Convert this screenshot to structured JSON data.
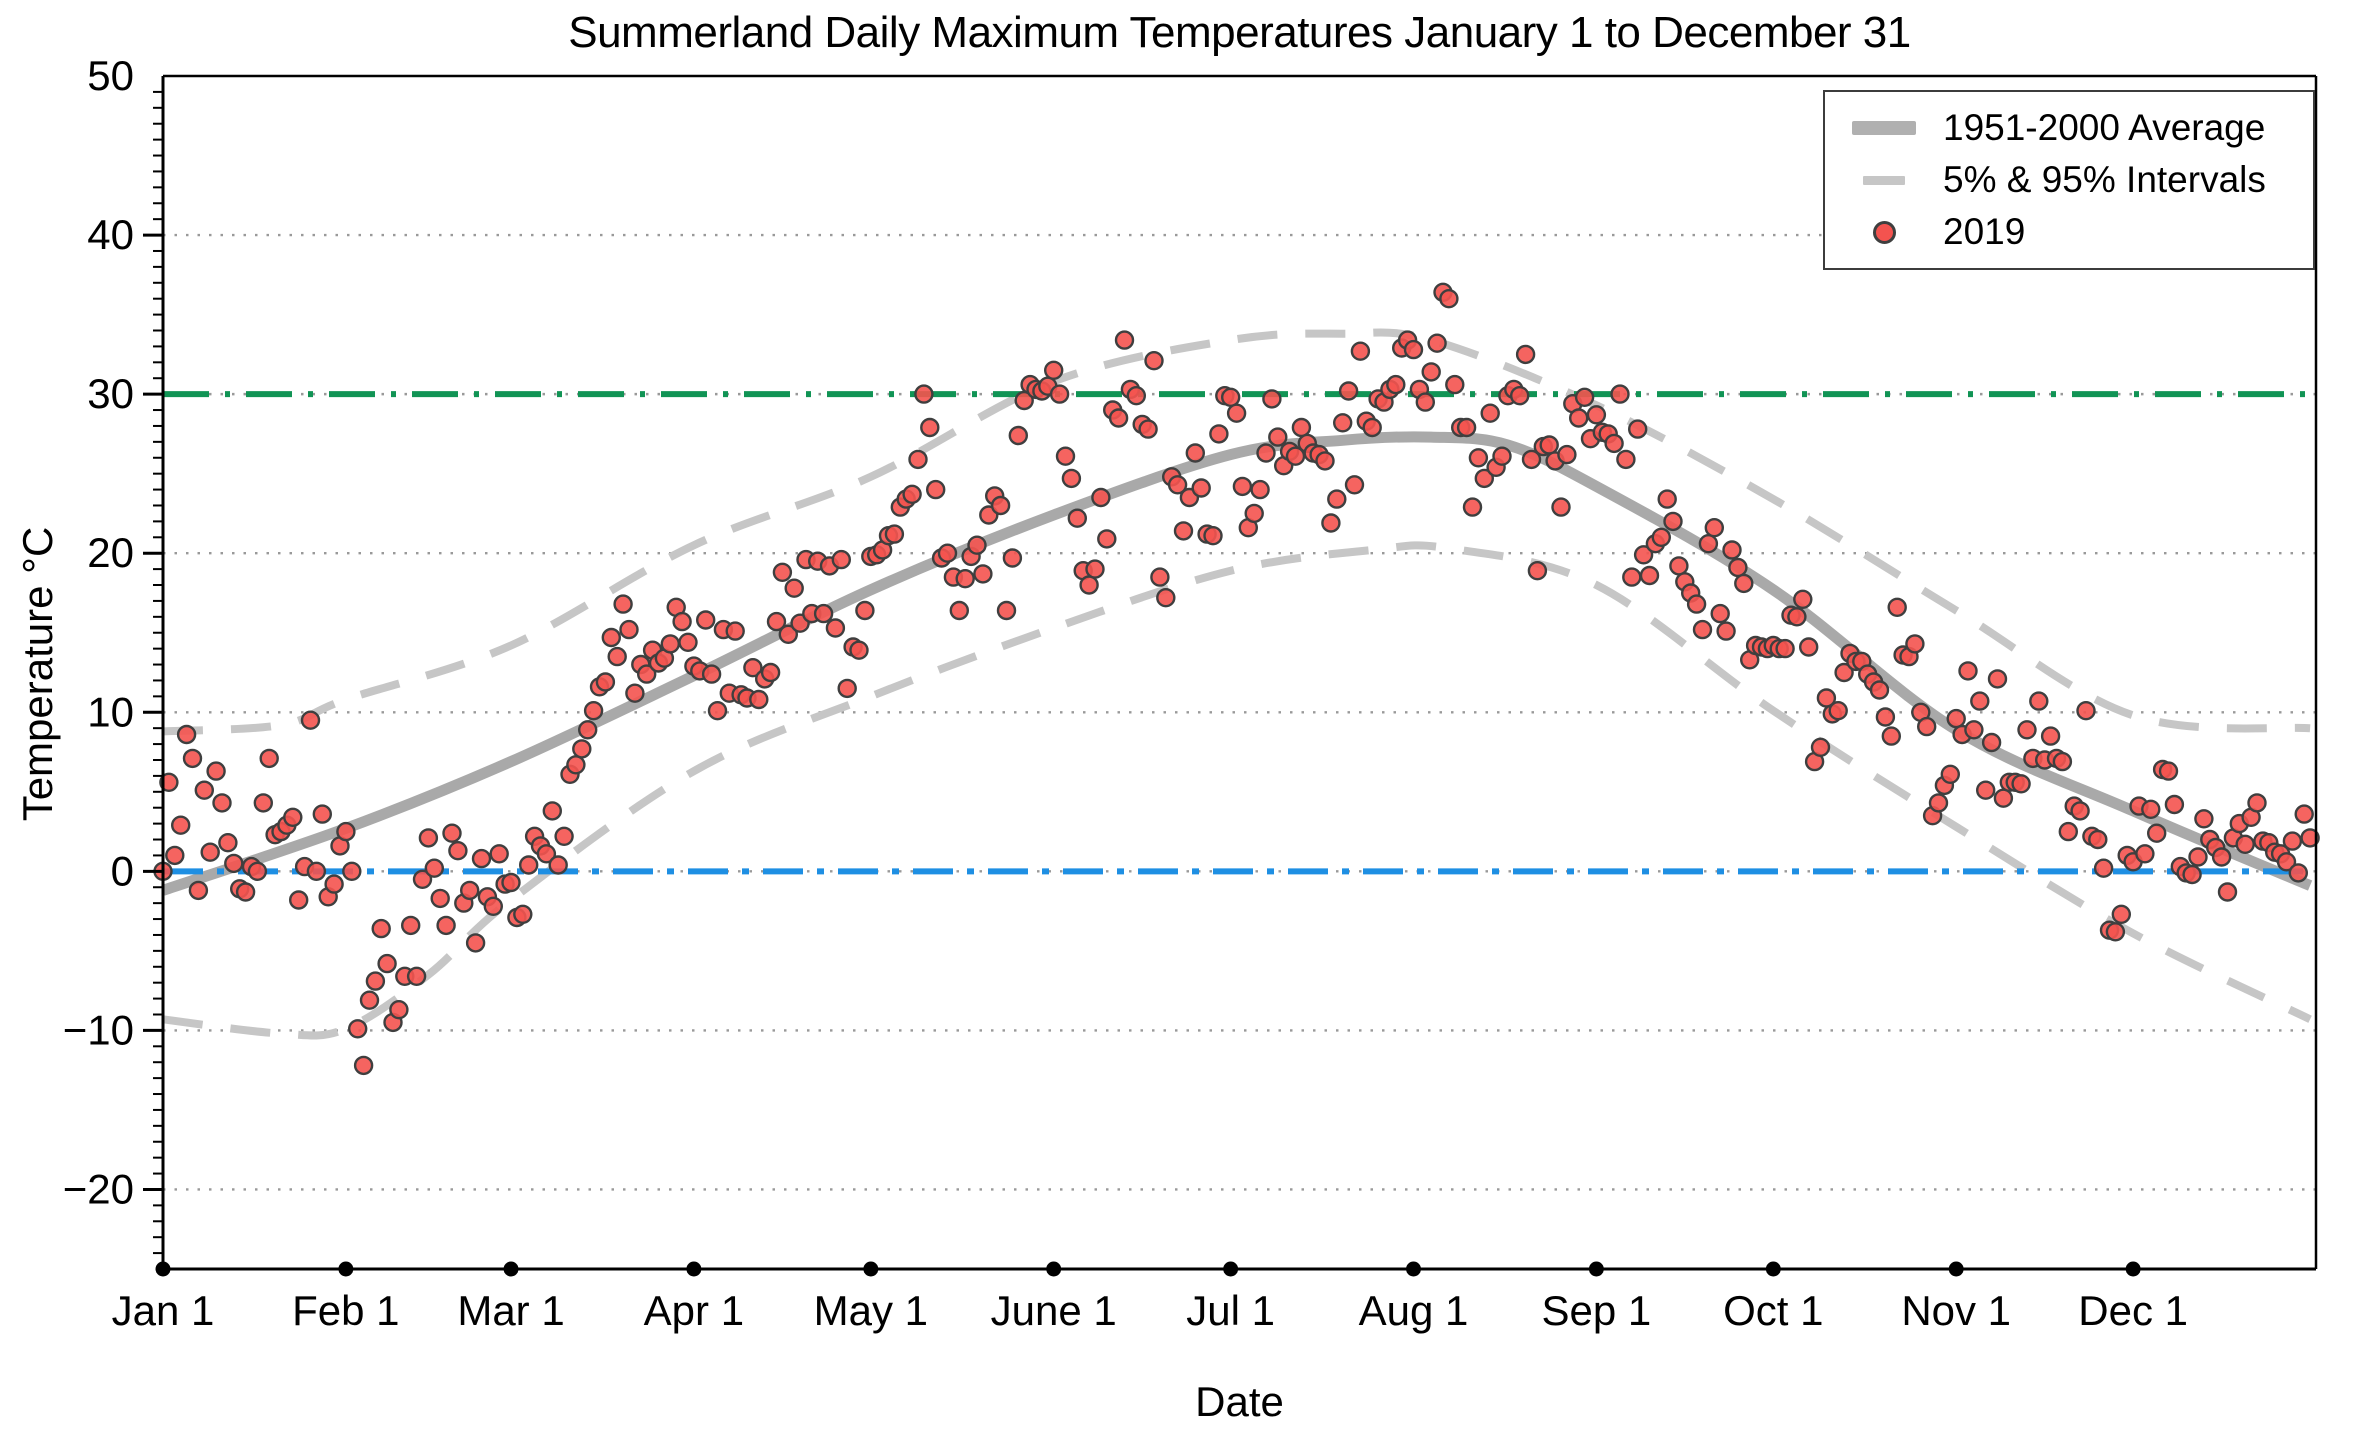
{
  "chart_data": {
    "type": "scatter",
    "title": "Summerland Daily Maximum Temperatures January 1 to December 31",
    "xlabel": "Date",
    "ylabel": "Temperature °C",
    "ylim": [
      -25,
      50
    ],
    "grid": "dotted horizontal lines at multiples of 10",
    "legend_position": "top-right",
    "yticks": [
      {
        "value": 50,
        "label": "50"
      },
      {
        "value": 40,
        "label": "40"
      },
      {
        "value": 30,
        "label": "30"
      },
      {
        "value": 20,
        "label": "20"
      },
      {
        "value": 10,
        "label": "10"
      },
      {
        "value": 0,
        "label": "0"
      },
      {
        "value": -10,
        "label": "−10"
      },
      {
        "value": -20,
        "label": "−20"
      }
    ],
    "xticks": [
      {
        "day": 0,
        "label": "Jan 1"
      },
      {
        "day": 31,
        "label": "Feb 1"
      },
      {
        "day": 59,
        "label": "Mar 1"
      },
      {
        "day": 90,
        "label": "Apr 1"
      },
      {
        "day": 120,
        "label": "May 1"
      },
      {
        "day": 151,
        "label": "June 1"
      },
      {
        "day": 181,
        "label": "Jul 1"
      },
      {
        "day": 212,
        "label": "Aug 1"
      },
      {
        "day": 243,
        "label": "Sep 1"
      },
      {
        "day": 273,
        "label": "Oct 1"
      },
      {
        "day": 304,
        "label": "Nov 1"
      },
      {
        "day": 334,
        "label": "Dec 1"
      }
    ],
    "legend": [
      {
        "label": "1951-2000 Average",
        "marker": "thick-gray-line"
      },
      {
        "label": "5% & 95% Intervals",
        "marker": "gray-dash"
      },
      {
        "label": "2019",
        "marker": "red-dot"
      }
    ],
    "reference_lines": [
      {
        "name": "30C-threshold",
        "value": 30,
        "style": "dash-dot",
        "color": "#119455"
      },
      {
        "name": "0C-freezing",
        "value": 0,
        "style": "dash-dot",
        "color": "#1e8fe3"
      }
    ],
    "series": [
      {
        "name": "1951-2000 Average",
        "style": "thick solid gray",
        "anchors_day_temp": [
          [
            0,
            -1.2
          ],
          [
            31,
            2.7
          ],
          [
            59,
            6.9
          ],
          [
            90,
            12.3
          ],
          [
            120,
            17.7
          ],
          [
            151,
            22.4
          ],
          [
            181,
            26.2
          ],
          [
            200,
            27.1
          ],
          [
            215,
            27.3
          ],
          [
            228,
            26.8
          ],
          [
            243,
            24.2
          ],
          [
            273,
            17.7
          ],
          [
            304,
            8.9
          ],
          [
            334,
            3.8
          ],
          [
            364,
            -0.9
          ]
        ]
      },
      {
        "name": "95% Interval",
        "style": "dashed gray",
        "anchors_day_temp": [
          [
            0,
            8.8
          ],
          [
            20,
            9.2
          ],
          [
            31,
            10.8
          ],
          [
            59,
            14.2
          ],
          [
            90,
            20.5
          ],
          [
            120,
            24.8
          ],
          [
            151,
            30.8
          ],
          [
            181,
            33.4
          ],
          [
            200,
            33.8
          ],
          [
            215,
            33.4
          ],
          [
            243,
            29.3
          ],
          [
            273,
            23.4
          ],
          [
            304,
            16.4
          ],
          [
            334,
            9.8
          ],
          [
            364,
            9.0
          ]
        ]
      },
      {
        "name": "5% Interval",
        "style": "dashed gray",
        "anchors_day_temp": [
          [
            0,
            -9.3
          ],
          [
            20,
            -10.2
          ],
          [
            31,
            -9.9
          ],
          [
            45,
            -6.5
          ],
          [
            59,
            -1.8
          ],
          [
            90,
            6.3
          ],
          [
            120,
            11.0
          ],
          [
            151,
            15.3
          ],
          [
            181,
            18.9
          ],
          [
            205,
            20.2
          ],
          [
            218,
            20.3
          ],
          [
            243,
            18.0
          ],
          [
            273,
            10.1
          ],
          [
            304,
            2.8
          ],
          [
            334,
            -3.9
          ],
          [
            364,
            -9.3
          ]
        ]
      }
    ],
    "daily_max_2019": {
      "Jan": [
        0.0,
        5.6,
        1.0,
        2.9,
        8.6,
        7.1,
        -1.2,
        5.1,
        1.2,
        6.3,
        4.3,
        1.8,
        0.5,
        -1.1,
        -1.3,
        0.3,
        0.0,
        4.3,
        7.1,
        2.3,
        2.5,
        2.9,
        3.4,
        -1.8,
        0.3,
        9.5,
        0.0,
        3.6,
        -1.6,
        -0.8,
        1.6
      ],
      "Feb": [
        2.5,
        0.0,
        -9.9,
        -12.2,
        -8.1,
        -6.9,
        -3.6,
        -5.8,
        -9.5,
        -8.7,
        -6.6,
        -3.4,
        -6.6,
        -0.5,
        2.1,
        0.2,
        -1.7,
        -3.4,
        2.4,
        1.3,
        -2.0,
        -1.2,
        -4.5,
        0.8,
        -1.6,
        -2.2,
        1.1,
        -0.8
      ],
      "Mar": [
        -0.7,
        -2.9,
        -2.7,
        0.4,
        2.2,
        1.6,
        1.1,
        3.8,
        0.4,
        2.2,
        6.1,
        6.7,
        7.7,
        8.9,
        10.1,
        11.6,
        11.9,
        14.7,
        13.5,
        16.8,
        15.2,
        11.2,
        13.0,
        12.4,
        13.9,
        13.1,
        13.4,
        14.3,
        16.6,
        15.7,
        14.4
      ],
      "Apr": [
        12.9,
        12.6,
        15.8,
        12.4,
        10.1,
        15.2,
        11.2,
        15.1,
        11.1,
        10.9,
        12.8,
        10.8,
        12.1,
        12.5,
        15.7,
        18.8,
        14.9,
        17.8,
        15.6,
        19.6,
        16.2,
        19.5,
        16.2,
        19.2,
        15.3,
        19.6,
        11.5,
        14.1,
        13.9,
        16.4
      ],
      "May": [
        19.8,
        19.9,
        20.2,
        21.1,
        21.2,
        22.9,
        23.4,
        23.7,
        25.9,
        30.0,
        27.9,
        24.0,
        19.7,
        20.0,
        18.5,
        16.4,
        18.4,
        19.8,
        20.5,
        18.7,
        22.4,
        23.6,
        23.0,
        16.4,
        19.7,
        27.4,
        29.6,
        30.6,
        30.3,
        30.2,
        30.5
      ],
      "Jun": [
        31.5,
        30.0,
        26.1,
        24.7,
        22.2,
        18.9,
        18.0,
        19.0,
        23.5,
        20.9,
        29.0,
        28.5,
        33.4,
        30.3,
        29.9,
        28.1,
        27.8,
        32.1,
        18.5,
        17.2,
        24.8,
        24.3,
        21.4,
        23.5,
        26.3,
        24.1,
        21.2,
        21.1,
        27.5,
        29.9
      ],
      "Jul": [
        29.8,
        28.8,
        24.2,
        21.6,
        22.5,
        24.0,
        26.3,
        29.7,
        27.3,
        25.5,
        26.4,
        26.1,
        27.9,
        26.9,
        26.3,
        26.2,
        25.8,
        21.9,
        23.4,
        28.2,
        30.2,
        24.3,
        32.7,
        28.3,
        27.9,
        29.7,
        29.5,
        30.3,
        30.6,
        32.9,
        33.4
      ],
      "Aug": [
        32.8,
        30.3,
        29.5,
        31.4,
        33.2,
        36.4,
        36.0,
        30.6,
        27.9,
        27.9,
        22.9,
        26.0,
        24.7,
        28.8,
        25.4,
        26.1,
        29.9,
        30.3,
        29.9,
        32.5,
        25.9,
        18.9,
        26.7,
        26.8,
        25.8,
        22.9,
        26.2,
        29.4,
        28.5,
        29.8,
        27.2
      ],
      "Sep": [
        28.7,
        27.6,
        27.5,
        26.9,
        30.0,
        25.9,
        18.5,
        27.8,
        19.9,
        18.6,
        20.6,
        21.0,
        23.4,
        22.0,
        19.2,
        18.2,
        17.5,
        16.8,
        15.2,
        20.6,
        21.6,
        16.2,
        15.1,
        20.2,
        19.1,
        18.1,
        13.3,
        14.2,
        14.1,
        14.0
      ],
      "Oct": [
        14.2,
        14.0,
        14.0,
        16.1,
        16.0,
        17.1,
        14.1,
        6.9,
        7.8,
        10.9,
        9.9,
        10.1,
        12.5,
        13.7,
        13.2,
        13.2,
        12.4,
        11.9,
        11.4,
        9.7,
        8.5,
        16.6,
        13.6,
        13.5,
        14.3,
        10.0,
        9.1,
        3.5,
        4.3,
        5.4,
        6.1
      ],
      "Nov": [
        9.6,
        8.6,
        12.6,
        8.9,
        10.7,
        5.1,
        8.1,
        12.1,
        4.6,
        5.6,
        5.6,
        5.5,
        8.9,
        7.1,
        10.7,
        7.0,
        8.5,
        7.1,
        6.9,
        2.5,
        4.1,
        3.8,
        10.1,
        2.2,
        2.0,
        0.2,
        -3.7,
        -3.8,
        -2.7,
        1.0
      ],
      "Dec": [
        0.6,
        4.1,
        1.1,
        3.9,
        2.4,
        6.4,
        6.3,
        4.2,
        0.3,
        -0.1,
        -0.2,
        0.9,
        3.3,
        2.0,
        1.5,
        0.9,
        -1.3,
        2.1,
        3.0,
        1.7,
        3.4,
        4.3,
        1.9,
        1.8,
        1.2,
        1.1,
        0.6,
        1.9,
        -0.1,
        3.6,
        2.1
      ]
    },
    "month_order": [
      "Jan",
      "Feb",
      "Mar",
      "Apr",
      "May",
      "Jun",
      "Jul",
      "Aug",
      "Sep",
      "Oct",
      "Nov",
      "Dec"
    ],
    "colors": {
      "point_fill": "#f4534f",
      "point_edge": "#3f3f3f",
      "average_line": "#a9a9a9",
      "interval_line": "#c6c6c6",
      "line_30c": "#119455",
      "line_0c": "#1e8fe3",
      "grid": "#999999",
      "axis": "#000000"
    }
  }
}
